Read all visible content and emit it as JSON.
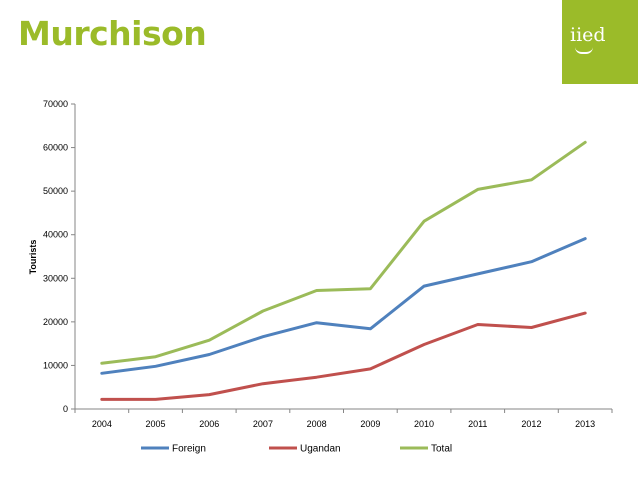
{
  "slide": {
    "title": "Murchison",
    "logo_text": "iied"
  },
  "colors": {
    "accent": "#9bbb29",
    "foreign": "#4f81bd",
    "ugandan": "#c0504d",
    "total": "#9bbb59"
  },
  "chart_data": {
    "type": "line",
    "x": [
      "2004",
      "2005",
      "2006",
      "2007",
      "2008",
      "2009",
      "2010",
      "2011",
      "2012",
      "2013"
    ],
    "ylabel": "Tourists",
    "xlabel": "",
    "ylim": [
      0,
      70000
    ],
    "yticks": [
      0,
      10000,
      20000,
      30000,
      40000,
      50000,
      60000,
      70000
    ],
    "grid": false,
    "legend": "bottom",
    "series": [
      {
        "name": "Foreign",
        "color": "#4f81bd",
        "values": [
          8200,
          9800,
          12500,
          16600,
          19800,
          18400,
          28200,
          31000,
          33800,
          39100
        ]
      },
      {
        "name": "Ugandan",
        "color": "#c0504d",
        "values": [
          2200,
          2200,
          3300,
          5800,
          7300,
          9200,
          14800,
          19400,
          18700,
          22000
        ]
      },
      {
        "name": "Total",
        "color": "#9bbb59",
        "values": [
          10500,
          12000,
          15800,
          22500,
          27200,
          27600,
          43100,
          50400,
          52600,
          61200
        ]
      }
    ]
  }
}
